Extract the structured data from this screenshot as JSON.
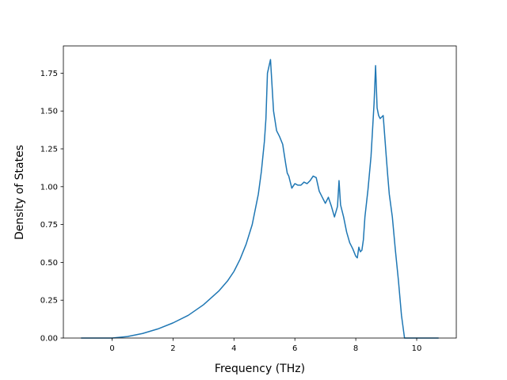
{
  "chart_data": {
    "type": "line",
    "title": "",
    "xlabel": "Frequency (THz)",
    "ylabel": "Density of States",
    "xlim": [
      -1.6,
      11.3
    ],
    "ylim": [
      0.0,
      1.93
    ],
    "xticks": [
      0,
      2,
      4,
      6,
      8,
      10
    ],
    "yticks": [
      0.0,
      0.25,
      0.5,
      0.75,
      1.0,
      1.25,
      1.5,
      1.75
    ],
    "xtick_labels": [
      "0",
      "2",
      "4",
      "6",
      "8",
      "10"
    ],
    "ytick_labels": [
      "0.00",
      "0.25",
      "0.50",
      "0.75",
      "1.00",
      "1.25",
      "1.50",
      "1.75"
    ],
    "grid": false,
    "legend": "none",
    "series_color": "#1f77b4",
    "series": [
      {
        "x": [
          -1.0,
          0.0,
          0.1,
          0.5,
          1.0,
          1.5,
          2.0,
          2.5,
          3.0,
          3.5,
          3.8,
          4.0,
          4.2,
          4.4,
          4.6,
          4.8,
          4.9,
          4.95,
          5.0,
          5.05,
          5.1,
          5.2,
          5.3,
          5.4,
          5.5,
          5.6,
          5.7,
          5.75,
          5.8,
          5.9,
          6.0,
          6.1,
          6.2,
          6.3,
          6.4,
          6.5,
          6.6,
          6.7,
          6.8,
          6.9,
          7.0,
          7.1,
          7.2,
          7.3,
          7.4,
          7.45,
          7.5,
          7.6,
          7.7,
          7.8,
          7.9,
          8.0,
          8.05,
          8.1,
          8.15,
          8.2,
          8.25,
          8.3,
          8.4,
          8.5,
          8.6,
          8.65,
          8.7,
          8.75,
          8.8,
          8.85,
          8.9,
          9.0,
          9.05,
          9.1,
          9.2,
          9.3,
          9.4,
          9.5,
          9.6,
          9.7,
          9.75,
          10.0,
          10.7
        ],
        "y": [
          0.0,
          0.0,
          0.002,
          0.01,
          0.03,
          0.06,
          0.1,
          0.15,
          0.22,
          0.31,
          0.38,
          0.44,
          0.52,
          0.62,
          0.75,
          0.95,
          1.1,
          1.2,
          1.3,
          1.45,
          1.75,
          1.84,
          1.5,
          1.37,
          1.33,
          1.28,
          1.15,
          1.09,
          1.07,
          0.99,
          1.02,
          1.01,
          1.01,
          1.03,
          1.02,
          1.04,
          1.07,
          1.06,
          0.97,
          0.93,
          0.89,
          0.93,
          0.87,
          0.8,
          0.87,
          1.04,
          0.88,
          0.8,
          0.7,
          0.63,
          0.59,
          0.54,
          0.53,
          0.6,
          0.57,
          0.58,
          0.65,
          0.8,
          0.98,
          1.2,
          1.55,
          1.8,
          1.52,
          1.47,
          1.45,
          1.46,
          1.47,
          1.2,
          1.07,
          0.95,
          0.8,
          0.58,
          0.38,
          0.15,
          0.0,
          0.0,
          0.0,
          0.0,
          0.0
        ]
      }
    ]
  }
}
